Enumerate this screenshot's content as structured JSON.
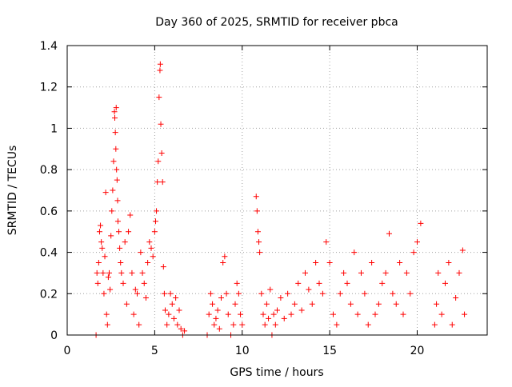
{
  "chart_data": {
    "type": "scatter",
    "title": "Day 360 of 2025, SRMTID for receiver pbca",
    "xlabel": "GPS time / hours",
    "ylabel": "SRMTID / TECUs",
    "xlim": [
      0,
      24
    ],
    "ylim": [
      0,
      1.4
    ],
    "x_ticks": [
      0,
      5,
      10,
      15,
      20
    ],
    "x_tick_labels": [
      "0",
      "5",
      "10",
      "15",
      "20"
    ],
    "y_ticks": [
      0,
      0.2,
      0.4,
      0.6,
      0.8,
      1.0,
      1.2,
      1.4
    ],
    "y_tick_labels": [
      "0",
      "0.2",
      "0.4",
      "0.6",
      "0.8",
      "1",
      "1.2",
      "1.4"
    ],
    "grid": true,
    "marker": "plus",
    "color": "#ff0000",
    "series": [
      {
        "name": "SRMTID",
        "points": [
          [
            1.65,
            0.0
          ],
          [
            9.35,
            0.0
          ],
          [
            11.7,
            0.0
          ],
          [
            1.7,
            0.3
          ],
          [
            1.75,
            0.25
          ],
          [
            1.8,
            0.35
          ],
          [
            1.85,
            0.5
          ],
          [
            1.9,
            0.53
          ],
          [
            1.95,
            0.45
          ],
          [
            2.0,
            0.42
          ],
          [
            2.05,
            0.3
          ],
          [
            2.1,
            0.2
          ],
          [
            2.15,
            0.38
          ],
          [
            2.2,
            0.69
          ],
          [
            2.25,
            0.1
          ],
          [
            2.3,
            0.05
          ],
          [
            2.35,
            0.28
          ],
          [
            2.4,
            0.3
          ],
          [
            2.45,
            0.22
          ],
          [
            2.5,
            0.48
          ],
          [
            2.55,
            0.6
          ],
          [
            2.6,
            0.7
          ],
          [
            2.65,
            0.84
          ],
          [
            2.7,
            1.08
          ],
          [
            2.72,
            1.05
          ],
          [
            2.75,
            0.98
          ],
          [
            2.78,
            0.9
          ],
          [
            2.8,
            1.1
          ],
          [
            2.82,
            0.8
          ],
          [
            2.85,
            0.75
          ],
          [
            2.88,
            0.65
          ],
          [
            2.9,
            0.55
          ],
          [
            2.95,
            0.5
          ],
          [
            3.0,
            0.42
          ],
          [
            3.05,
            0.35
          ],
          [
            3.1,
            0.3
          ],
          [
            3.2,
            0.25
          ],
          [
            3.3,
            0.45
          ],
          [
            3.4,
            0.15
          ],
          [
            3.5,
            0.5
          ],
          [
            3.6,
            0.58
          ],
          [
            3.7,
            0.3
          ],
          [
            3.8,
            0.1
          ],
          [
            3.9,
            0.22
          ],
          [
            4.0,
            0.2
          ],
          [
            4.1,
            0.05
          ],
          [
            4.2,
            0.4
          ],
          [
            4.3,
            0.3
          ],
          [
            4.4,
            0.25
          ],
          [
            4.5,
            0.18
          ],
          [
            4.6,
            0.35
          ],
          [
            4.7,
            0.45
          ],
          [
            4.8,
            0.42
          ],
          [
            4.9,
            0.38
          ],
          [
            5.0,
            0.5
          ],
          [
            5.05,
            0.55
          ],
          [
            5.1,
            0.6
          ],
          [
            5.15,
            0.74
          ],
          [
            5.2,
            0.84
          ],
          [
            5.25,
            1.15
          ],
          [
            5.3,
            1.28
          ],
          [
            5.32,
            1.31
          ],
          [
            5.35,
            1.02
          ],
          [
            5.4,
            0.88
          ],
          [
            5.45,
            0.74
          ],
          [
            5.5,
            0.33
          ],
          [
            5.55,
            0.2
          ],
          [
            5.6,
            0.12
          ],
          [
            5.7,
            0.05
          ],
          [
            5.8,
            0.1
          ],
          [
            5.9,
            0.2
          ],
          [
            6.0,
            0.15
          ],
          [
            6.1,
            0.08
          ],
          [
            6.2,
            0.18
          ],
          [
            6.3,
            0.05
          ],
          [
            6.4,
            0.12
          ],
          [
            6.5,
            0.03
          ],
          [
            6.6,
            0.0
          ],
          [
            6.7,
            0.02
          ],
          [
            8.0,
            0.0
          ],
          [
            8.1,
            0.1
          ],
          [
            8.2,
            0.2
          ],
          [
            8.3,
            0.15
          ],
          [
            8.4,
            0.05
          ],
          [
            8.5,
            0.08
          ],
          [
            8.6,
            0.12
          ],
          [
            8.7,
            0.03
          ],
          [
            8.8,
            0.18
          ],
          [
            8.9,
            0.35
          ],
          [
            9.0,
            0.38
          ],
          [
            9.1,
            0.2
          ],
          [
            9.2,
            0.1
          ],
          [
            9.5,
            0.05
          ],
          [
            9.6,
            0.15
          ],
          [
            9.7,
            0.25
          ],
          [
            9.8,
            0.2
          ],
          [
            9.9,
            0.1
          ],
          [
            10.0,
            0.05
          ],
          [
            10.8,
            0.67
          ],
          [
            10.85,
            0.6
          ],
          [
            10.9,
            0.5
          ],
          [
            10.95,
            0.45
          ],
          [
            11.0,
            0.4
          ],
          [
            11.1,
            0.2
          ],
          [
            11.2,
            0.1
          ],
          [
            11.3,
            0.05
          ],
          [
            11.4,
            0.15
          ],
          [
            11.5,
            0.08
          ],
          [
            11.6,
            0.22
          ],
          [
            11.8,
            0.1
          ],
          [
            11.9,
            0.05
          ],
          [
            12.0,
            0.12
          ],
          [
            12.2,
            0.18
          ],
          [
            12.4,
            0.08
          ],
          [
            12.6,
            0.2
          ],
          [
            12.8,
            0.1
          ],
          [
            13.0,
            0.15
          ],
          [
            13.2,
            0.25
          ],
          [
            13.4,
            0.12
          ],
          [
            13.6,
            0.3
          ],
          [
            13.8,
            0.22
          ],
          [
            14.0,
            0.15
          ],
          [
            14.2,
            0.35
          ],
          [
            14.4,
            0.25
          ],
          [
            14.6,
            0.2
          ],
          [
            14.8,
            0.45
          ],
          [
            15.0,
            0.35
          ],
          [
            15.2,
            0.1
          ],
          [
            15.4,
            0.05
          ],
          [
            15.6,
            0.2
          ],
          [
            15.8,
            0.3
          ],
          [
            16.0,
            0.25
          ],
          [
            16.2,
            0.15
          ],
          [
            16.4,
            0.4
          ],
          [
            16.6,
            0.1
          ],
          [
            16.8,
            0.3
          ],
          [
            17.0,
            0.2
          ],
          [
            17.2,
            0.05
          ],
          [
            17.4,
            0.35
          ],
          [
            17.6,
            0.1
          ],
          [
            17.8,
            0.15
          ],
          [
            18.0,
            0.25
          ],
          [
            18.2,
            0.3
          ],
          [
            18.4,
            0.49
          ],
          [
            18.6,
            0.2
          ],
          [
            18.8,
            0.15
          ],
          [
            19.0,
            0.35
          ],
          [
            19.2,
            0.1
          ],
          [
            19.4,
            0.3
          ],
          [
            19.6,
            0.2
          ],
          [
            19.8,
            0.4
          ],
          [
            20.0,
            0.45
          ],
          [
            20.2,
            0.54
          ],
          [
            21.0,
            0.05
          ],
          [
            21.1,
            0.15
          ],
          [
            21.2,
            0.3
          ],
          [
            21.4,
            0.1
          ],
          [
            21.6,
            0.25
          ],
          [
            21.8,
            0.35
          ],
          [
            22.0,
            0.05
          ],
          [
            22.2,
            0.18
          ],
          [
            22.4,
            0.3
          ],
          [
            22.6,
            0.41
          ],
          [
            22.7,
            0.1
          ]
        ]
      }
    ]
  }
}
